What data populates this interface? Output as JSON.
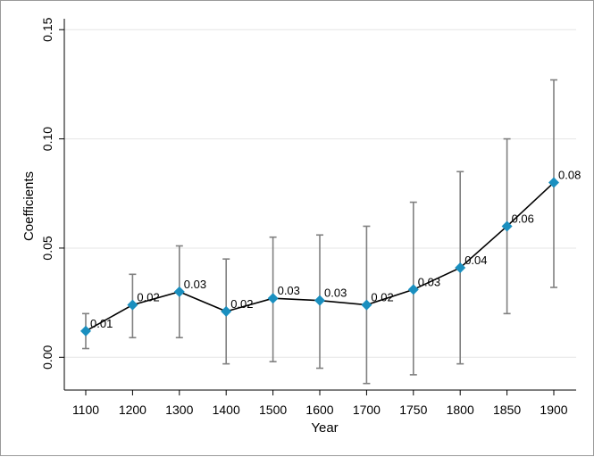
{
  "chart_data": {
    "type": "line",
    "xlabel": "Year",
    "ylabel": "Coefficients",
    "categories": [
      "1100",
      "1200",
      "1300",
      "1400",
      "1500",
      "1600",
      "1700",
      "1750",
      "1800",
      "1850",
      "1900"
    ],
    "series": [
      {
        "values": [
          0.012,
          0.024,
          0.03,
          0.021,
          0.027,
          0.026,
          0.024,
          0.031,
          0.041,
          0.06,
          0.08
        ],
        "ci_low": [
          0.004,
          0.009,
          0.009,
          -0.003,
          -0.002,
          -0.005,
          -0.012,
          -0.008,
          -0.003,
          0.02,
          0.032
        ],
        "ci_high": [
          0.02,
          0.038,
          0.051,
          0.045,
          0.055,
          0.056,
          0.06,
          0.071,
          0.085,
          0.1,
          0.127
        ],
        "labels": [
          "0.01",
          "0.02",
          "0.03",
          "0.02",
          "0.03",
          "0.03",
          "0.02",
          "0.03",
          "0.04",
          "0.06",
          "0.08"
        ],
        "marker": "diamond",
        "marker_color": "#1a8fbf",
        "line_color": "#000000",
        "errorbar_color": "#808080"
      }
    ],
    "ylim": [
      -0.015,
      0.155
    ],
    "yticks": [
      0.0,
      0.05,
      0.1,
      0.15
    ],
    "ytick_labels": [
      "0.00",
      "0.05",
      "0.10",
      "0.15"
    ],
    "grid": "horizontal",
    "legend": "none"
  }
}
